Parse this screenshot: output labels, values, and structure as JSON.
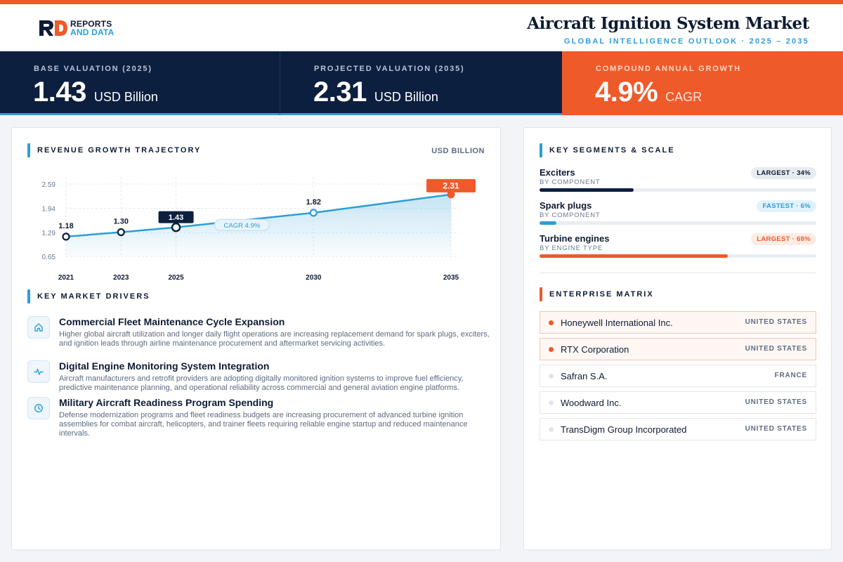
{
  "brand": {
    "line1": "REPORTS",
    "line2": "AND DATA",
    "accent": "#ef5a2a",
    "secondary": "#2d9ed8",
    "navy": "#0d1f3f"
  },
  "header": {
    "title": "Aircraft Ignition System Market",
    "subtitle": "GLOBAL INTELLIGENCE OUTLOOK · 2025 – 2035"
  },
  "kpis": [
    {
      "label": "BASE VALUATION (2025)",
      "value": "1.43",
      "unit": "USD Billion"
    },
    {
      "label": "PROJECTED VALUATION (2035)",
      "value": "2.31",
      "unit": "USD Billion"
    },
    {
      "label": "COMPOUND ANNUAL GROWTH",
      "value": "4.9%",
      "unit": "CAGR"
    }
  ],
  "chart_section": {
    "title": "REVENUE GROWTH TRAJECTORY",
    "unit": "USD BILLION"
  },
  "chart_data": {
    "type": "area",
    "x": [
      "2021",
      "2023",
      "2025",
      "2030",
      "2035"
    ],
    "values": [
      1.18,
      1.3,
      1.43,
      1.82,
      2.31
    ],
    "value_labels": [
      "1.18",
      "1.30",
      "1.43",
      "1.82",
      "2.31"
    ],
    "y_ticks": [
      "2.59",
      "1.94",
      "1.29",
      "0.65"
    ],
    "ylim": [
      0.65,
      2.59
    ],
    "annotation": "CAGR 4.9%",
    "highlight": {
      "2025": "navy",
      "2035": "orange"
    },
    "grid": true
  },
  "drivers_section": {
    "title": "KEY MARKET DRIVERS"
  },
  "drivers": [
    {
      "icon": "home-icon",
      "title": "Commercial Fleet Maintenance Cycle Expansion",
      "desc": "Higher global aircraft utilization and longer daily flight operations are increasing replacement demand for spark plugs, exciters, and ignition leads through airline maintenance procurement and aftermarket servicing activities."
    },
    {
      "icon": "pulse-icon",
      "title": "Digital Engine Monitoring System Integration",
      "desc": "Aircraft manufacturers and retrofit providers are adopting digitally monitored ignition systems to improve fuel efficiency, predictive maintenance planning, and operational reliability across commercial and general aviation engine platforms."
    },
    {
      "icon": "clock-icon",
      "title": "Military Aircraft Readiness Program Spending",
      "desc": "Defense modernization programs and fleet readiness budgets are increasing procurement of advanced turbine ignition assemblies for combat aircraft, helicopters, and trainer fleets requiring reliable engine startup and reduced maintenance intervals."
    }
  ],
  "segments_section": {
    "title": "KEY SEGMENTS & SCALE"
  },
  "segments": [
    {
      "name": "Exciters",
      "category": "BY COMPONENT",
      "badge": "LARGEST · 34%",
      "share": 0.34,
      "color": "#0d1f3f",
      "badge_style": "navy"
    },
    {
      "name": "Spark plugs",
      "category": "BY COMPONENT",
      "badge": "FASTEST · 6%",
      "share": 0.06,
      "color": "#2d9ed8",
      "badge_style": "blue"
    },
    {
      "name": "Turbine engines",
      "category": "BY ENGINE TYPE",
      "badge": "LARGEST · 68%",
      "share": 0.68,
      "color": "#ef5a2a",
      "badge_style": "orange"
    }
  ],
  "matrix_section": {
    "title": "ENTERPRISE MATRIX"
  },
  "companies": [
    {
      "name": "Honeywell International Inc.",
      "country": "UNITED STATES",
      "highlight": true
    },
    {
      "name": "RTX Corporation",
      "country": "UNITED STATES",
      "highlight": true
    },
    {
      "name": "Safran S.A.",
      "country": "FRANCE",
      "highlight": false
    },
    {
      "name": "Woodward Inc.",
      "country": "UNITED STATES",
      "highlight": false
    },
    {
      "name": "TransDigm Group Incorporated",
      "country": "UNITED STATES",
      "highlight": false
    }
  ]
}
